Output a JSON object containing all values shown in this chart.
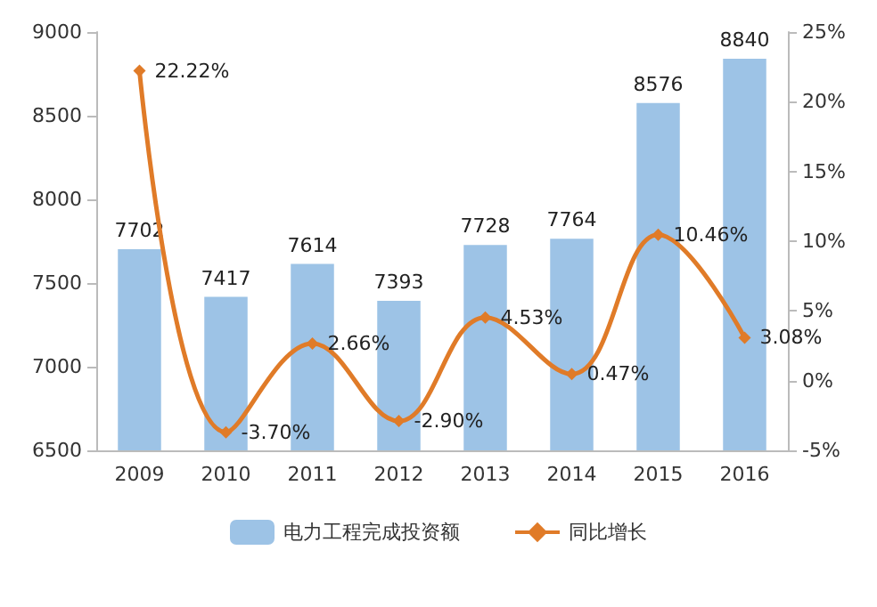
{
  "chart_data": {
    "type": "bar",
    "categories": [
      "2009",
      "2010",
      "2011",
      "2012",
      "2013",
      "2014",
      "2015",
      "2016"
    ],
    "series": [
      {
        "name": "电力工程完成投资额",
        "color": "#9dc3e6",
        "values": [
          7702,
          7417,
          7614,
          7393,
          7728,
          7764,
          8576,
          8840
        ],
        "value_labels": [
          "7702",
          "7417",
          "7614",
          "7393",
          "7728",
          "7764",
          "8576",
          "8840"
        ]
      },
      {
        "name": "同比增长",
        "type": "line",
        "axis": "y2",
        "color": "#e07b28",
        "marker": "diamond",
        "values": [
          22.22,
          -3.7,
          2.66,
          -2.9,
          4.53,
          0.47,
          10.46,
          3.08
        ],
        "value_labels": [
          "22.22%",
          "-3.70%",
          "2.66%",
          "-2.90%",
          "4.53%",
          "0.47%",
          "10.46%",
          "3.08%"
        ]
      }
    ],
    "ylim": [
      6500,
      9000
    ],
    "yticks": [
      6500,
      7000,
      7500,
      8000,
      8500,
      9000
    ],
    "y2lim": [
      -5,
      25
    ],
    "y2ticks": [
      {
        "value": -5,
        "label": "-5%"
      },
      {
        "value": 0,
        "label": "0%"
      },
      {
        "value": 5,
        "label": "5%"
      },
      {
        "value": 10,
        "label": "10%"
      },
      {
        "value": 15,
        "label": "15%"
      },
      {
        "value": 20,
        "label": "20%"
      },
      {
        "value": 25,
        "label": "25%"
      }
    ],
    "grid": false,
    "legend": "bottom"
  }
}
